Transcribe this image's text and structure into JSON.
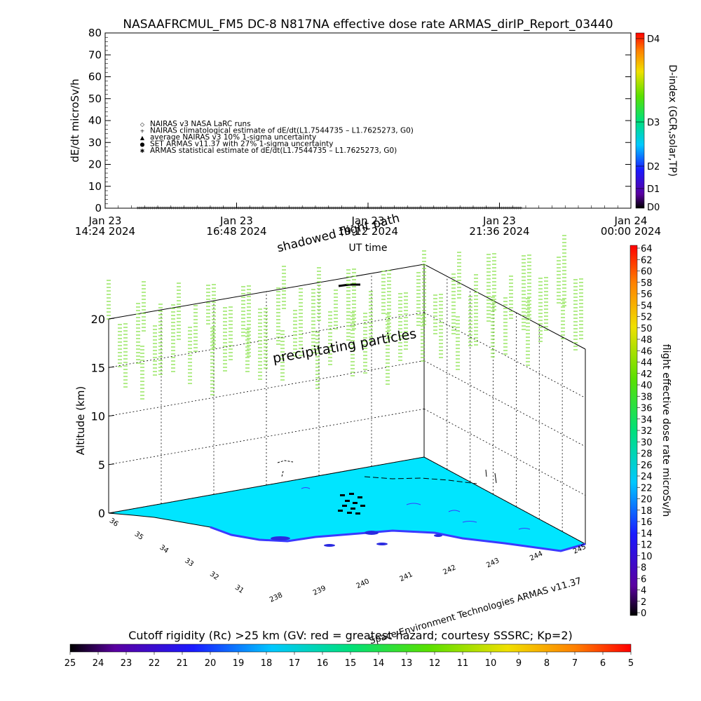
{
  "title": "NASAAFRCMUL_FM5 DC-8    N817NA effective dose rate ARMAS_dirIP_Report_03440",
  "colors": {
    "ground_fill": "#00e5ff",
    "ground_line": "#000000",
    "land_contour": "#3a3aff",
    "column_mark": "#7fe03c",
    "track_mark": "#000000"
  },
  "top_panel": {
    "ylabel": "dE/dt microSv/h",
    "xlabel": "UT time",
    "y_ticks": [
      "80",
      "70",
      "60",
      "50",
      "40",
      "30",
      "20",
      "10",
      "0"
    ],
    "x_ticks": [
      {
        "day": "Jan 23",
        "time": "14:24 2024"
      },
      {
        "day": "Jan 23",
        "time": "16:48 2024"
      },
      {
        "day": "Jan 23",
        "time": "19:12 2024"
      },
      {
        "day": "Jan 23",
        "time": "21:36 2024"
      },
      {
        "day": "Jan 24",
        "time": "00:00 2024"
      }
    ],
    "legend": [
      {
        "symbol": "◇",
        "label": "NAIRAS v3 NASA LaRC runs"
      },
      {
        "symbol": "+",
        "label": "NAIRAS climatological estimate of dE/dt(L1.7544735 – L1.7625273, G0)"
      },
      {
        "symbol": "▲",
        "label": "average NAIRAS v3 10% 1-sigma uncertainty"
      },
      {
        "symbol": "●",
        "label": "SET ARMAS v11.37 with 27% 1-sigma uncertainty"
      },
      {
        "symbol": "✱",
        "label": "ARMAS statistical estimate of dE/dt(L1.7544735 – L1.7625273, G0)"
      }
    ],
    "right_label": "D-index (GCR,solar,TP)",
    "right_ticks": [
      "D4",
      "D3",
      "D2",
      "D1",
      "D0"
    ]
  },
  "main_panel": {
    "ylabel": "Altitude (km)",
    "z_ticks": [
      "20",
      "15",
      "10",
      "5",
      "0"
    ],
    "lat_ticks": [
      "36",
      "35",
      "34",
      "33",
      "32",
      "31"
    ],
    "lon_ticks": [
      "238",
      "239",
      "240",
      "241",
      "242",
      "243",
      "244",
      "245"
    ],
    "annotation_precip": "precipitating particles",
    "annotation_shadow": "shadowed flight path",
    "footer": "Space Environment Technologies ARMAS v11.37"
  },
  "right_colorbar": {
    "label": "flight effective dose rate microSv/h",
    "ticks": [
      "64",
      "62",
      "60",
      "58",
      "56",
      "54",
      "52",
      "50",
      "48",
      "46",
      "44",
      "42",
      "40",
      "38",
      "36",
      "34",
      "32",
      "30",
      "28",
      "26",
      "24",
      "22",
      "20",
      "18",
      "16",
      "14",
      "12",
      "10",
      "8",
      "6",
      "4",
      "2",
      "0"
    ]
  },
  "bottom_colorbar": {
    "title": "Cutoff rigidity (Rc) >25 km (GV: red = greatest hazard; courtesy SSSRC; Kp=2)",
    "ticks": [
      "25",
      "24",
      "23",
      "22",
      "21",
      "20",
      "19",
      "18",
      "17",
      "16",
      "15",
      "14",
      "13",
      "12",
      "11",
      "10",
      "9",
      "8",
      "7",
      "6",
      "5"
    ]
  },
  "chart_data": {
    "type": "scatter",
    "title": "NASAAFRCMUL_FM5 DC-8    N817NA effective dose rate ARMAS_dirIP_Report_03440",
    "xlabel": "UT time",
    "ylabel": "dE/dt microSv/h",
    "ylim": [
      0,
      80
    ],
    "x_range": [
      "Jan 23 14:24 2024",
      "Jan 24 00:00 2024"
    ],
    "series": [
      {
        "name": "SET ARMAS v11.37 with 27% 1-sigma uncertainty",
        "x_start": "Jan 23 15:00 2024",
        "x_end": "Jan 23 22:00 2024",
        "y": 0
      }
    ],
    "altitude_km_ticks": [
      0,
      5,
      10,
      15,
      20
    ],
    "longitude_range": [
      238,
      245
    ],
    "latitude_range": [
      31,
      36
    ]
  }
}
